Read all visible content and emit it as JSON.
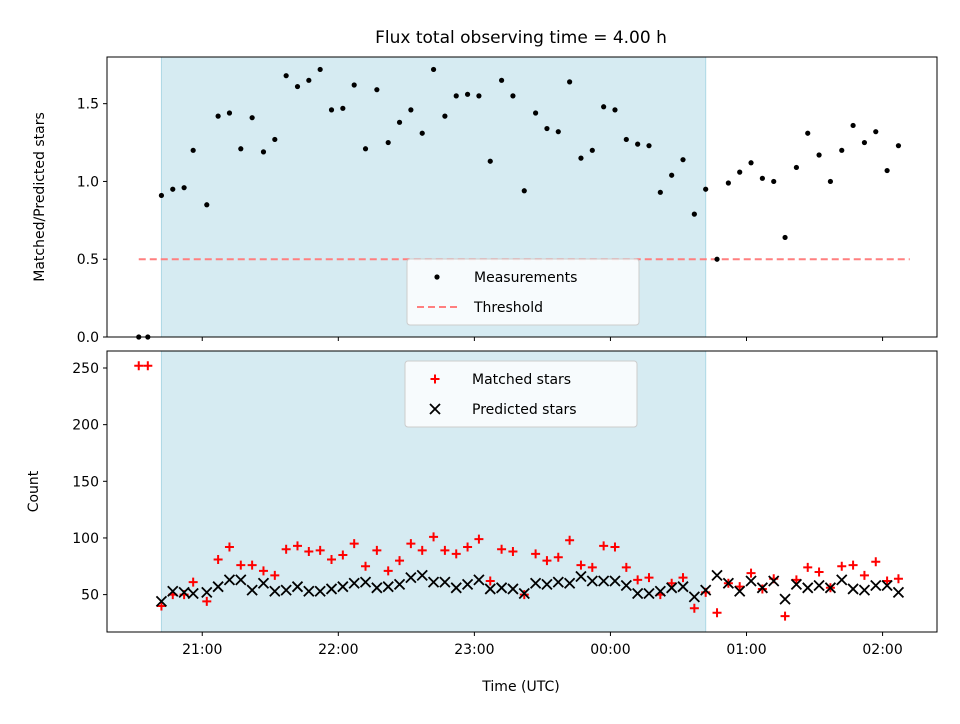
{
  "title": "Flux total observing time = 4.00 h",
  "chart_data": [
    {
      "type": "scatter",
      "ylabel": "Matched/Predicted stars",
      "xlim": [
        "20:18",
        "02:24"
      ],
      "ylim": [
        0,
        1.8
      ],
      "yticks": [
        "0.0",
        "0.5",
        "1.0",
        "1.5"
      ],
      "shaded_region": [
        "20:42",
        "00:42"
      ],
      "shade_color": "#add8e6",
      "threshold": {
        "name": "Threshold",
        "value": 0.5,
        "x_range": [
          "20:32",
          "02:12"
        ],
        "color": "#ff7f7f",
        "style": "dashed"
      },
      "legend": {
        "placement": "lower-center",
        "entries": [
          "Measurements",
          "Threshold"
        ]
      },
      "series": [
        {
          "name": "Measurements",
          "marker": "dot",
          "color": "#000000",
          "points": [
            [
              "20:32",
              0.0
            ],
            [
              "20:36",
              0.0
            ],
            [
              "20:42",
              0.91
            ],
            [
              "20:47",
              0.95
            ],
            [
              "20:52",
              0.96
            ],
            [
              "20:56",
              1.2
            ],
            [
              "21:02",
              0.85
            ],
            [
              "21:07",
              1.42
            ],
            [
              "21:12",
              1.44
            ],
            [
              "21:17",
              1.21
            ],
            [
              "21:22",
              1.41
            ],
            [
              "21:27",
              1.19
            ],
            [
              "21:32",
              1.27
            ],
            [
              "21:37",
              1.68
            ],
            [
              "21:42",
              1.61
            ],
            [
              "21:47",
              1.65
            ],
            [
              "21:52",
              1.72
            ],
            [
              "21:57",
              1.46
            ],
            [
              "22:02",
              1.47
            ],
            [
              "22:07",
              1.62
            ],
            [
              "22:12",
              1.21
            ],
            [
              "22:17",
              1.59
            ],
            [
              "22:22",
              1.25
            ],
            [
              "22:27",
              1.38
            ],
            [
              "22:32",
              1.46
            ],
            [
              "22:37",
              1.31
            ],
            [
              "22:42",
              1.72
            ],
            [
              "22:47",
              1.42
            ],
            [
              "22:52",
              1.55
            ],
            [
              "22:57",
              1.56
            ],
            [
              "23:02",
              1.55
            ],
            [
              "23:07",
              1.13
            ],
            [
              "23:12",
              1.65
            ],
            [
              "23:17",
              1.55
            ],
            [
              "23:22",
              0.94
            ],
            [
              "23:27",
              1.44
            ],
            [
              "23:32",
              1.34
            ],
            [
              "23:37",
              1.32
            ],
            [
              "23:42",
              1.64
            ],
            [
              "23:47",
              1.15
            ],
            [
              "23:52",
              1.2
            ],
            [
              "23:57",
              1.48
            ],
            [
              "00:02",
              1.46
            ],
            [
              "00:07",
              1.27
            ],
            [
              "00:12",
              1.24
            ],
            [
              "00:17",
              1.23
            ],
            [
              "00:22",
              0.93
            ],
            [
              "00:27",
              1.04
            ],
            [
              "00:32",
              1.14
            ],
            [
              "00:37",
              0.79
            ],
            [
              "00:42",
              0.95
            ],
            [
              "00:47",
              0.5
            ],
            [
              "00:52",
              0.99
            ],
            [
              "00:57",
              1.06
            ],
            [
              "01:02",
              1.12
            ],
            [
              "01:07",
              1.02
            ],
            [
              "01:12",
              1.0
            ],
            [
              "01:17",
              0.64
            ],
            [
              "01:22",
              1.09
            ],
            [
              "01:27",
              1.31
            ],
            [
              "01:32",
              1.17
            ],
            [
              "01:37",
              1.0
            ],
            [
              "01:42",
              1.2
            ],
            [
              "01:47",
              1.36
            ],
            [
              "01:52",
              1.25
            ],
            [
              "01:57",
              1.32
            ],
            [
              "02:02",
              1.07
            ],
            [
              "02:07",
              1.23
            ]
          ]
        }
      ]
    },
    {
      "type": "scatter",
      "xlabel": "Time (UTC)",
      "ylabel": "Count",
      "xlim": [
        "20:18",
        "02:24"
      ],
      "xticks": [
        "21:00",
        "22:00",
        "23:00",
        "00:00",
        "01:00",
        "02:00"
      ],
      "ylim": [
        17,
        265
      ],
      "yticks": [
        "50",
        "100",
        "150",
        "200",
        "250"
      ],
      "shaded_region": [
        "20:42",
        "00:42"
      ],
      "shade_color": "#add8e6",
      "legend": {
        "placement": "upper-center",
        "entries": [
          "Matched stars",
          "Predicted stars"
        ]
      },
      "series": [
        {
          "name": "Matched stars",
          "marker": "plus",
          "color": "#ff0000",
          "points": [
            [
              "20:32",
              252
            ],
            [
              "20:36",
              252
            ],
            [
              "20:42",
              40
            ],
            [
              "20:47",
              50
            ],
            [
              "20:52",
              50
            ],
            [
              "20:56",
              61
            ],
            [
              "21:02",
              44
            ],
            [
              "21:07",
              81
            ],
            [
              "21:12",
              92
            ],
            [
              "21:17",
              76
            ],
            [
              "21:22",
              76
            ],
            [
              "21:27",
              71
            ],
            [
              "21:32",
              67
            ],
            [
              "21:37",
              90
            ],
            [
              "21:42",
              93
            ],
            [
              "21:47",
              88
            ],
            [
              "21:52",
              89
            ],
            [
              "21:57",
              81
            ],
            [
              "22:02",
              85
            ],
            [
              "22:07",
              95
            ],
            [
              "22:12",
              75
            ],
            [
              "22:17",
              89
            ],
            [
              "22:22",
              71
            ],
            [
              "22:27",
              80
            ],
            [
              "22:32",
              95
            ],
            [
              "22:37",
              89
            ],
            [
              "22:42",
              101
            ],
            [
              "22:47",
              89
            ],
            [
              "22:52",
              86
            ],
            [
              "22:57",
              92
            ],
            [
              "23:02",
              99
            ],
            [
              "23:07",
              62
            ],
            [
              "23:12",
              90
            ],
            [
              "23:17",
              88
            ],
            [
              "23:22",
              50
            ],
            [
              "23:27",
              86
            ],
            [
              "23:32",
              80
            ],
            [
              "23:37",
              83
            ],
            [
              "23:42",
              98
            ],
            [
              "23:47",
              76
            ],
            [
              "23:52",
              74
            ],
            [
              "23:57",
              93
            ],
            [
              "00:02",
              92
            ],
            [
              "00:07",
              74
            ],
            [
              "00:12",
              63
            ],
            [
              "00:17",
              65
            ],
            [
              "00:22",
              50
            ],
            [
              "00:27",
              60
            ],
            [
              "00:32",
              65
            ],
            [
              "00:37",
              38
            ],
            [
              "00:42",
              52
            ],
            [
              "00:47",
              34
            ],
            [
              "00:52",
              60
            ],
            [
              "00:57",
              57
            ],
            [
              "01:02",
              69
            ],
            [
              "01:07",
              55
            ],
            [
              "01:12",
              64
            ],
            [
              "01:17",
              31
            ],
            [
              "01:22",
              63
            ],
            [
              "01:27",
              74
            ],
            [
              "01:32",
              70
            ],
            [
              "01:37",
              56
            ],
            [
              "01:42",
              75
            ],
            [
              "01:47",
              76
            ],
            [
              "01:52",
              67
            ],
            [
              "01:57",
              79
            ],
            [
              "02:02",
              62
            ],
            [
              "02:07",
              64
            ]
          ]
        },
        {
          "name": "Predicted stars",
          "marker": "x",
          "color": "#000000",
          "points": [
            [
              "20:42",
              44
            ],
            [
              "20:47",
              53
            ],
            [
              "20:52",
              52
            ],
            [
              "20:56",
              51
            ],
            [
              "21:02",
              52
            ],
            [
              "21:07",
              57
            ],
            [
              "21:12",
              63
            ],
            [
              "21:17",
              63
            ],
            [
              "21:22",
              54
            ],
            [
              "21:27",
              60
            ],
            [
              "21:32",
              53
            ],
            [
              "21:37",
              54
            ],
            [
              "21:42",
              57
            ],
            [
              "21:47",
              53
            ],
            [
              "21:52",
              53
            ],
            [
              "21:57",
              55
            ],
            [
              "22:02",
              57
            ],
            [
              "22:07",
              60
            ],
            [
              "22:12",
              61
            ],
            [
              "22:17",
              56
            ],
            [
              "22:22",
              57
            ],
            [
              "22:27",
              59
            ],
            [
              "22:32",
              65
            ],
            [
              "22:37",
              67
            ],
            [
              "22:42",
              61
            ],
            [
              "22:47",
              61
            ],
            [
              "22:52",
              56
            ],
            [
              "22:57",
              59
            ],
            [
              "23:02",
              63
            ],
            [
              "23:07",
              55
            ],
            [
              "23:12",
              56
            ],
            [
              "23:17",
              55
            ],
            [
              "23:22",
              51
            ],
            [
              "23:27",
              60
            ],
            [
              "23:32",
              59
            ],
            [
              "23:37",
              61
            ],
            [
              "23:42",
              60
            ],
            [
              "23:47",
              66
            ],
            [
              "23:52",
              62
            ],
            [
              "23:57",
              62
            ],
            [
              "00:02",
              62
            ],
            [
              "00:07",
              58
            ],
            [
              "00:12",
              51
            ],
            [
              "00:17",
              51
            ],
            [
              "00:22",
              53
            ],
            [
              "00:27",
              56
            ],
            [
              "00:32",
              57
            ],
            [
              "00:37",
              48
            ],
            [
              "00:42",
              54
            ],
            [
              "00:47",
              67
            ],
            [
              "00:52",
              60
            ],
            [
              "00:57",
              53
            ],
            [
              "01:02",
              62
            ],
            [
              "01:07",
              56
            ],
            [
              "01:12",
              62
            ],
            [
              "01:17",
              46
            ],
            [
              "01:22",
              59
            ],
            [
              "01:27",
              56
            ],
            [
              "01:32",
              58
            ],
            [
              "01:37",
              56
            ],
            [
              "01:42",
              63
            ],
            [
              "01:47",
              55
            ],
            [
              "01:52",
              54
            ],
            [
              "01:57",
              58
            ],
            [
              "02:02",
              58
            ],
            [
              "02:07",
              52
            ]
          ]
        }
      ]
    }
  ]
}
